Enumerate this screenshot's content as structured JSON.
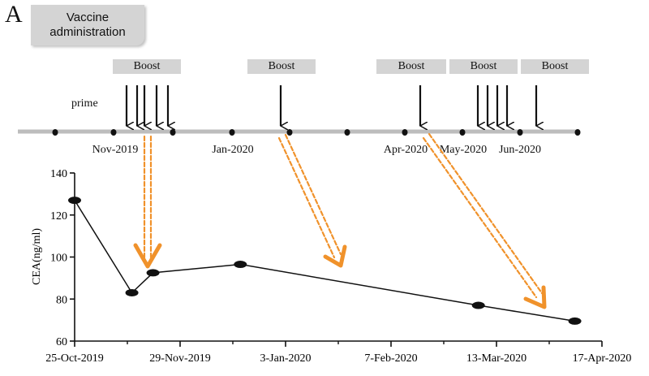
{
  "panel_label": "A",
  "vaccine_box": {
    "line1": "Vaccine",
    "line2": "administration"
  },
  "timeline": {
    "prime_label": "prime",
    "boost_label": "Boost",
    "month_labels": [
      "Nov-2019",
      "Jan-2020",
      "Apr-2020",
      "May-2020",
      "Jun-2020"
    ]
  },
  "colors": {
    "arrow": "#f0922b",
    "axis": "#111111",
    "timeline": "#bdbdbd",
    "box": "#d4d4d4"
  },
  "chart_data": {
    "type": "line",
    "title": "",
    "xlabel": "",
    "ylabel": "CEA(ng/ml)",
    "ylim": [
      60,
      140
    ],
    "yticks": [
      60,
      80,
      100,
      120,
      140
    ],
    "xlim": [
      "2019-10-25",
      "2020-04-17"
    ],
    "xticks": [
      "25-Oct-2019",
      "29-Nov-2019",
      "3-Jan-2020",
      "7-Feb-2020",
      "13-Mar-2020",
      "17-Apr-2020"
    ],
    "grid": false,
    "legend": "none",
    "series": [
      {
        "x": [
          "2019-10-25",
          "2019-11-13",
          "2019-11-20",
          "2019-12-19",
          "2020-03-07",
          "2020-04-08"
        ],
        "y": [
          127,
          83,
          92.5,
          96.5,
          77,
          69.5
        ]
      }
    ]
  }
}
